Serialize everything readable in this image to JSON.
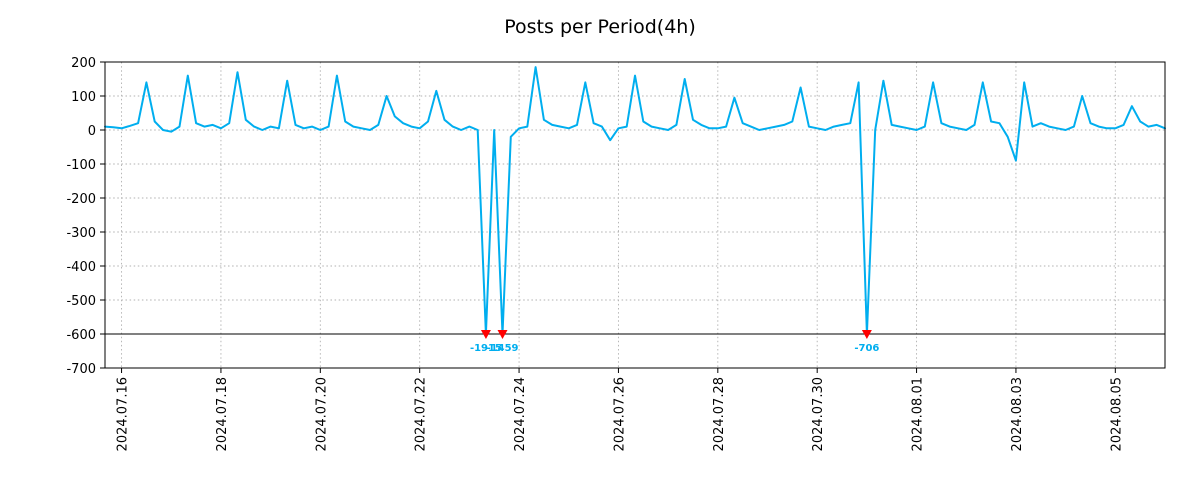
{
  "title": "Posts per Period(4h)",
  "chart_data": {
    "type": "line",
    "title": "Posts per Period(4h)",
    "line_color": "#00aeef",
    "marker_color": "#ff0000",
    "grid": true,
    "ylim": [
      -700,
      200
    ],
    "yticks": [
      200,
      100,
      0,
      -100,
      -200,
      -300,
      -400,
      -500,
      -600,
      -700
    ],
    "clip_value": -600,
    "x_period_hours": 4,
    "xtick_labels": [
      "2024.07.16",
      "2024.07.18",
      "2024.07.20",
      "2024.07.22",
      "2024.07.24",
      "2024.07.26",
      "2024.07.28",
      "2024.07.30",
      "2024.08.01",
      "2024.08.03",
      "2024.08.05"
    ],
    "xtick_indices": [
      2,
      14,
      26,
      38,
      50,
      62,
      74,
      86,
      98,
      110,
      122
    ],
    "values": [
      10,
      8,
      5,
      12,
      20,
      140,
      25,
      0,
      -5,
      10,
      160,
      20,
      10,
      15,
      5,
      20,
      170,
      30,
      10,
      0,
      10,
      5,
      145,
      15,
      5,
      10,
      0,
      10,
      160,
      25,
      10,
      5,
      0,
      15,
      100,
      40,
      20,
      10,
      5,
      25,
      115,
      30,
      10,
      0,
      10,
      0,
      -1915,
      0,
      -1459,
      -20,
      5,
      10,
      185,
      30,
      15,
      10,
      5,
      15,
      140,
      20,
      10,
      -30,
      5,
      10,
      160,
      25,
      10,
      5,
      0,
      15,
      150,
      30,
      15,
      5,
      5,
      10,
      95,
      20,
      10,
      0,
      5,
      10,
      15,
      25,
      125,
      10,
      5,
      0,
      10,
      15,
      20,
      140,
      -706,
      0,
      145,
      15,
      10,
      5,
      0,
      10,
      140,
      20,
      10,
      5,
      0,
      15,
      140,
      25,
      20,
      -20,
      -90,
      140,
      10,
      20,
      10,
      5,
      0,
      10,
      100,
      20,
      10,
      5,
      5,
      15,
      70,
      25,
      10,
      15,
      5
    ],
    "annotations": [
      {
        "index": 46,
        "value": -1915,
        "label": "-1915"
      },
      {
        "index": 48,
        "value": -1459,
        "label": "-1459"
      },
      {
        "index": 92,
        "value": -706,
        "label": "-706"
      }
    ]
  }
}
